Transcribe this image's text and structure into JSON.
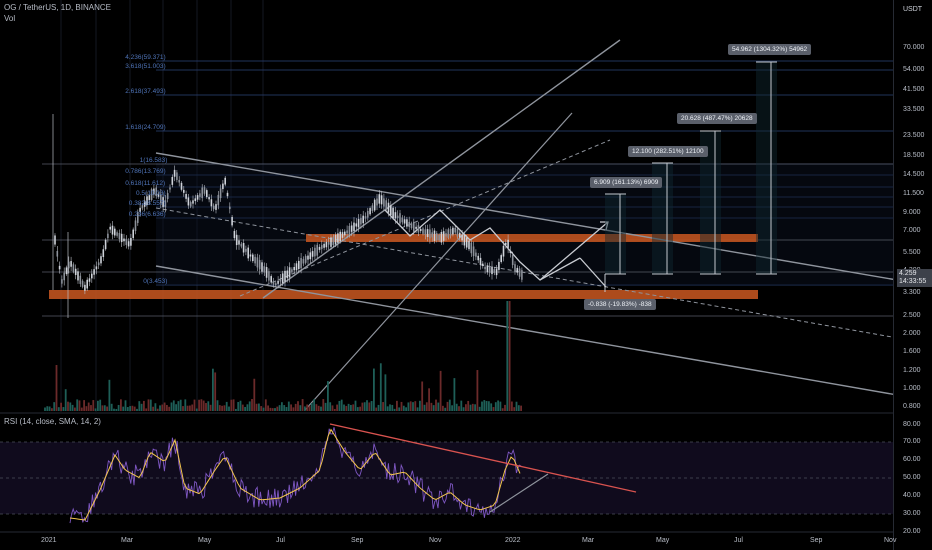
{
  "header": {
    "symbol_line": "OG / TetherUS, 1D, BINANCE",
    "vol_label": "Vol",
    "rsi_label": "RSI (14, close, SMA, 14, 2)"
  },
  "currency": "USDT",
  "price_tag": {
    "price": "4.259",
    "countdown": "14:33:55"
  },
  "price_axis": [
    "70.000",
    "54.000",
    "41.500",
    "33.500",
    "23.500",
    "18.500",
    "14.500",
    "11.500",
    "9.000",
    "7.000",
    "5.500",
    "4.300",
    "3.300",
    "2.500",
    "2.000",
    "1.600",
    "1.200",
    "1.000",
    "0.800"
  ],
  "rsi_axis": [
    "80.00",
    "70.00",
    "60.00",
    "50.00",
    "40.00",
    "30.00",
    "20.00"
  ],
  "time_axis": [
    "2021",
    "Mar",
    "May",
    "Jul",
    "Sep",
    "Nov",
    "2022",
    "Mar",
    "May",
    "Jul",
    "Sep",
    "Nov"
  ],
  "fib_levels": [
    "4.236(59.371)",
    "3.618(51.003)",
    "2.618(37.493)",
    "1.618(24.709)",
    "1(16.583)",
    "0.786(13.769)",
    "0.618(11.612)",
    "0.5(10.03)",
    "0.382(8.557)",
    "0.236(6.636)",
    "0(3.453)"
  ],
  "targets": [
    {
      "label": "6.909 (161.13%) 6909"
    },
    {
      "label": "12.100 (282.51%) 12100"
    },
    {
      "label": "20.628 (487.47%) 20628"
    },
    {
      "label": "54.962 (1304.32%) 54962"
    },
    {
      "label": "-0.838 (-19.83%) -838"
    }
  ],
  "colors": {
    "up": "#26a69a",
    "down": "#ef5350",
    "zone": "#c0531f",
    "rsi": "#7e57c2",
    "rsi_ma": "#f3c64d",
    "trend": "#d9534f"
  },
  "chart_data": [
    {
      "type": "candlestick",
      "title": "OG / TetherUS, 1D, BINANCE",
      "y_scale": "log",
      "ylim": [
        0.8,
        70
      ],
      "x": [
        "2021",
        "Mar",
        "May",
        "Jul",
        "Sep",
        "Nov",
        "2022"
      ],
      "close": [
        4.3,
        8.0,
        9.5,
        3.4,
        7.0,
        5.5,
        4.259
      ],
      "horizontal_zones": [
        [
          6.4,
          7.2
        ],
        [
          3.3,
          3.6
        ]
      ],
      "grid": true
    },
    {
      "type": "line",
      "title": "RSI (14, close, SMA, 14, 2)",
      "ylim": [
        20,
        80
      ],
      "levels": [
        70,
        50,
        30
      ],
      "series": [
        {
          "name": "RSI"
        },
        {
          "name": "SMA"
        }
      ]
    }
  ]
}
